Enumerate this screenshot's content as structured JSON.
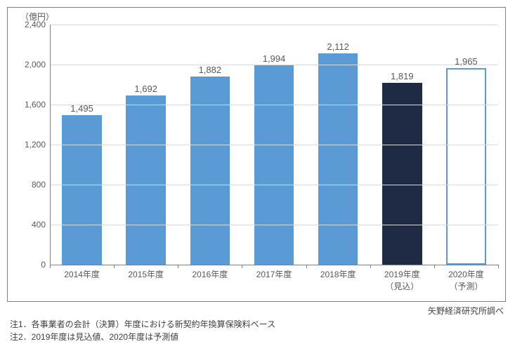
{
  "chart": {
    "type": "bar",
    "y_unit_label": "（億円）",
    "y_max": 2400,
    "y_ticks": [
      0,
      400,
      800,
      1200,
      1600,
      2000,
      2400
    ],
    "y_tick_labels": [
      "0",
      "400",
      "800",
      "1,200",
      "1,600",
      "2,000",
      "2,400"
    ],
    "grid_color": "#d9d9d9",
    "axis_color": "#808080",
    "background_color": "#ffffff",
    "label_color": "#595959",
    "label_fontsize": 12,
    "value_fontsize": 13,
    "bar_width_ratio": 0.62,
    "bars": [
      {
        "category": "2014年度",
        "value": 1495,
        "value_label": "1,495",
        "fill": "#5b9bd5",
        "border": "#5b9bd5"
      },
      {
        "category": "2015年度",
        "value": 1692,
        "value_label": "1,692",
        "fill": "#5b9bd5",
        "border": "#5b9bd5"
      },
      {
        "category": "2016年度",
        "value": 1882,
        "value_label": "1,882",
        "fill": "#5b9bd5",
        "border": "#5b9bd5"
      },
      {
        "category": "2017年度",
        "value": 1994,
        "value_label": "1,994",
        "fill": "#5b9bd5",
        "border": "#5b9bd5"
      },
      {
        "category": "2018年度",
        "value": 2112,
        "value_label": "2,112",
        "fill": "#5b9bd5",
        "border": "#5b9bd5"
      },
      {
        "category": "2019年度\n（見込）",
        "value": 1819,
        "value_label": "1,819",
        "fill": "#1f2a44",
        "border": "#1f2a44"
      },
      {
        "category": "2020年度\n（予測）",
        "value": 1965,
        "value_label": "1,965",
        "fill": "#ffffff",
        "border": "#5b9bd5"
      }
    ]
  },
  "source": "矢野経済研究所調べ",
  "notes": {
    "n1": "注1．各事業者の会計（決算）年度における新契約年換算保険料ベース",
    "n2": "注2．2019年度は見込値、2020年度は予測値"
  }
}
